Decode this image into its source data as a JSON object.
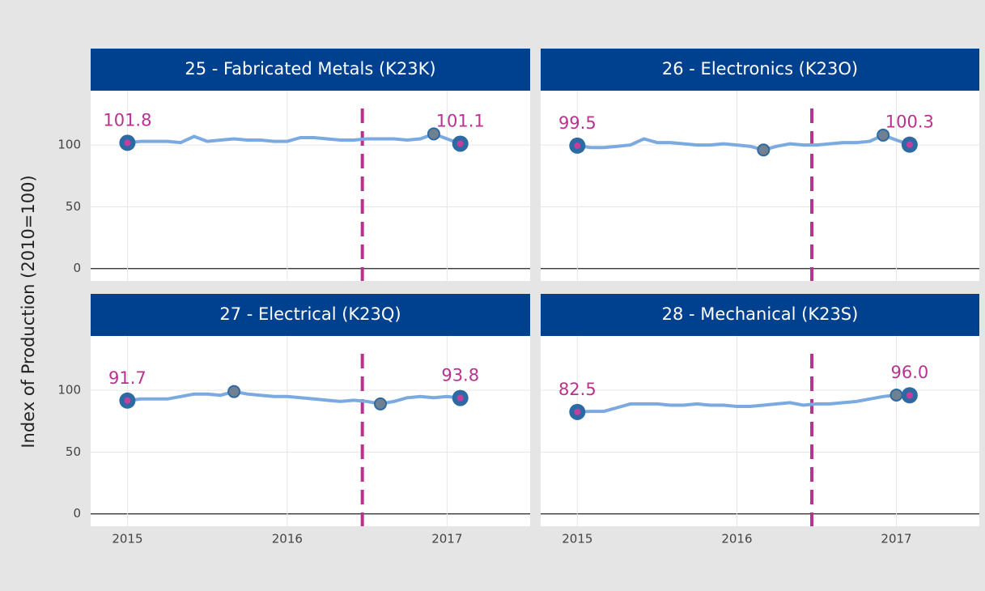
{
  "y_axis_label": "Index of Production (2010=100)",
  "chart_data": [
    {
      "type": "line",
      "title": "25 - Fabricated Metals (K23K)",
      "color": "#7aaae0",
      "vline": 2016.47,
      "x": [
        2015,
        2015.083,
        2015.167,
        2015.25,
        2015.333,
        2015.417,
        2015.5,
        2015.583,
        2015.667,
        2015.75,
        2015.833,
        2015.917,
        2016,
        2016.083,
        2016.167,
        2016.25,
        2016.333,
        2016.417,
        2016.5,
        2016.583,
        2016.667,
        2016.75,
        2016.833,
        2016.917,
        2017,
        2017.083
      ],
      "values": [
        101.8,
        103,
        103,
        103,
        102,
        107,
        103,
        104,
        105,
        104,
        104,
        103,
        103,
        106,
        106,
        105,
        104,
        104,
        105,
        105,
        105,
        104,
        105,
        109,
        105,
        101.1
      ],
      "value_labels": [
        "101.8",
        null,
        null,
        null,
        null,
        null,
        null,
        null,
        null,
        null,
        null,
        null,
        null,
        null,
        null,
        null,
        null,
        null,
        null,
        null,
        null,
        null,
        null,
        null,
        null,
        "101.1"
      ],
      "xlim": [
        2014.77,
        2017.52
      ],
      "ylim": [
        -10,
        144
      ],
      "xticks": [
        2015,
        2016,
        2017
      ],
      "yticks": [
        0,
        50,
        100
      ]
    },
    {
      "type": "line",
      "title": "26 - Electronics (K23O)",
      "color": "#7aaae0",
      "vline": 2016.47,
      "x": [
        2015,
        2015.083,
        2015.167,
        2015.25,
        2015.333,
        2015.417,
        2015.5,
        2015.583,
        2015.667,
        2015.75,
        2015.833,
        2015.917,
        2016,
        2016.083,
        2016.167,
        2016.25,
        2016.333,
        2016.417,
        2016.5,
        2016.583,
        2016.667,
        2016.75,
        2016.833,
        2016.917,
        2017,
        2017.083
      ],
      "values": [
        99.5,
        98,
        98,
        99,
        100,
        105,
        102,
        102,
        101,
        100,
        100,
        101,
        100,
        99,
        96,
        99,
        101,
        100,
        100,
        101,
        102,
        102,
        103,
        108,
        104,
        100.3
      ],
      "value_labels": [
        "99.5",
        null,
        null,
        null,
        null,
        null,
        null,
        null,
        null,
        null,
        null,
        null,
        null,
        null,
        null,
        null,
        null,
        null,
        null,
        null,
        null,
        null,
        null,
        null,
        null,
        "100.3"
      ],
      "xlim": [
        2014.77,
        2017.52
      ],
      "ylim": [
        -10,
        144
      ],
      "xticks": [
        2015,
        2016,
        2017
      ],
      "yticks": [
        0,
        50,
        100
      ]
    },
    {
      "type": "line",
      "title": "27 - Electrical (K23Q)",
      "color": "#7aaae0",
      "vline": 2016.47,
      "x": [
        2015,
        2015.083,
        2015.167,
        2015.25,
        2015.333,
        2015.417,
        2015.5,
        2015.583,
        2015.667,
        2015.75,
        2015.833,
        2015.917,
        2016,
        2016.083,
        2016.167,
        2016.25,
        2016.333,
        2016.417,
        2016.5,
        2016.583,
        2016.667,
        2016.75,
        2016.833,
        2016.917,
        2017,
        2017.083
      ],
      "values": [
        91.7,
        93,
        93,
        93,
        95,
        97,
        97,
        96,
        99,
        97,
        96,
        95,
        95,
        94,
        93,
        92,
        91,
        92,
        91,
        89,
        91,
        94,
        95,
        94,
        95,
        93.8
      ],
      "value_labels": [
        "91.7",
        null,
        null,
        null,
        null,
        null,
        null,
        null,
        null,
        null,
        null,
        null,
        null,
        null,
        null,
        null,
        null,
        null,
        null,
        null,
        null,
        null,
        null,
        null,
        null,
        "93.8"
      ],
      "xlim": [
        2014.77,
        2017.52
      ],
      "ylim": [
        -10,
        144
      ],
      "xticks": [
        2015,
        2016,
        2017
      ],
      "yticks": [
        0,
        50,
        100
      ]
    },
    {
      "type": "line",
      "title": "28 - Mechanical (K23S)",
      "color": "#7aaae0",
      "vline": 2016.47,
      "x": [
        2015,
        2015.083,
        2015.167,
        2015.25,
        2015.333,
        2015.417,
        2015.5,
        2015.583,
        2015.667,
        2015.75,
        2015.833,
        2015.917,
        2016,
        2016.083,
        2016.167,
        2016.25,
        2016.333,
        2016.417,
        2016.5,
        2016.583,
        2016.667,
        2016.75,
        2016.833,
        2016.917,
        2017,
        2017.083
      ],
      "values": [
        82.5,
        83,
        83,
        86,
        89,
        89,
        89,
        88,
        88,
        89,
        88,
        88,
        87,
        87,
        88,
        89,
        90,
        88,
        89,
        89,
        90,
        91,
        93,
        95,
        96.2,
        96.0
      ],
      "value_labels": [
        "82.5",
        null,
        null,
        null,
        null,
        null,
        null,
        null,
        null,
        null,
        null,
        null,
        null,
        null,
        null,
        null,
        null,
        null,
        null,
        null,
        null,
        null,
        null,
        null,
        null,
        "96.0"
      ],
      "xlim": [
        2014.77,
        2017.52
      ],
      "ylim": [
        -10,
        144
      ],
      "xticks": [
        2015,
        2016,
        2017
      ],
      "yticks": [
        0,
        50,
        100
      ]
    }
  ]
}
